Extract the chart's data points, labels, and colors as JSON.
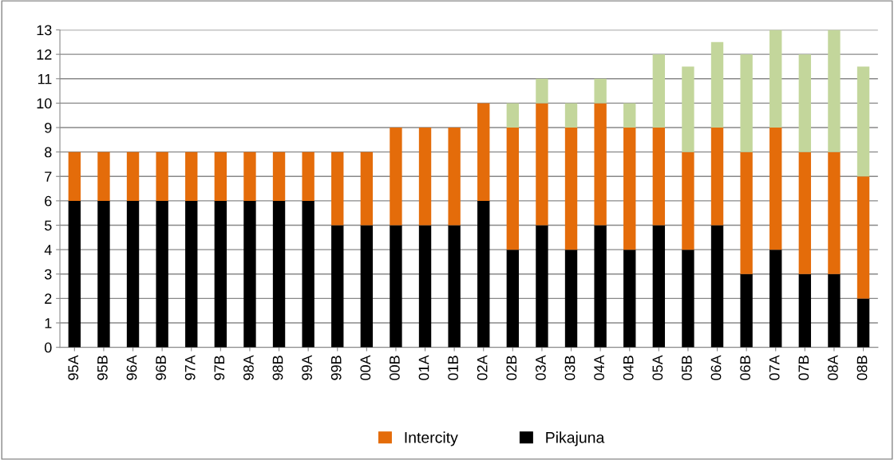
{
  "chart_data": {
    "type": "bar",
    "stacked": true,
    "categories": [
      "95A",
      "95B",
      "96A",
      "96B",
      "97A",
      "97B",
      "98A",
      "98B",
      "99A",
      "99B",
      "00A",
      "00B",
      "01A",
      "01B",
      "02A",
      "02B",
      "03A",
      "03B",
      "04A",
      "04B",
      "05A",
      "05B",
      "06A",
      "06B",
      "07A",
      "07B",
      "08A",
      "08B"
    ],
    "series": [
      {
        "name": "Pikajuna",
        "color": "#000000",
        "values": [
          6,
          6,
          6,
          6,
          6,
          6,
          6,
          6,
          6,
          5,
          5,
          5,
          5,
          5,
          6,
          4,
          5,
          4,
          5,
          4,
          5,
          4,
          5,
          3,
          4,
          3,
          3,
          2
        ]
      },
      {
        "name": "Intercity",
        "color": "#e46c0a",
        "values": [
          2,
          2,
          2,
          2,
          2,
          2,
          2,
          2,
          2,
          3,
          3,
          4,
          4,
          4,
          4,
          5,
          5,
          5,
          5,
          5,
          4,
          4,
          4,
          5,
          5,
          5,
          5,
          5
        ]
      },
      {
        "color": "#c3d69b",
        "values": [
          0,
          0,
          0,
          0,
          0,
          0,
          0,
          0,
          0,
          0,
          0,
          0,
          0,
          0,
          0,
          1,
          1,
          1,
          1,
          1,
          3,
          3.5,
          3.5,
          4,
          4,
          4,
          5,
          4.5
        ]
      }
    ],
    "ylim": [
      0,
      13
    ],
    "yticks": [
      0,
      1,
      2,
      3,
      4,
      5,
      6,
      7,
      8,
      9,
      10,
      11,
      12,
      13
    ],
    "grid": "y",
    "legend": "bottom"
  }
}
